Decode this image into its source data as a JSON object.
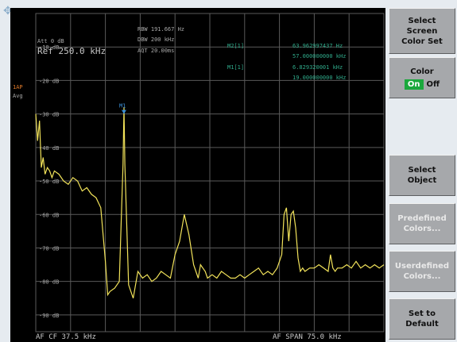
{
  "header": {
    "att": "Att  0 dB",
    "ref": "Ref  250.0 kHz",
    "rbw": "RBW 191.667 Hz",
    "dbw": "DBW 200 kHz",
    "aqt": "AQT 20.00ms",
    "m2_label": "M2[1]",
    "m2_val1": "63.962997437 Hz",
    "m2_val2": "57.000000000 kHz",
    "m1_label": "M1[1]",
    "m1_val1": "6.829320001 kHz",
    "m1_val2": "19.000000000 kHz",
    "trace_mode_1": "1AP",
    "trace_mode_2": "Avg",
    "marker_label": "M1",
    "footer_left": "AF CF  37.5 kHz",
    "footer_right": "AF SPAN  75.0 kHz"
  },
  "softkeys": {
    "select_color_set": [
      "Select",
      "Screen",
      "Color Set"
    ],
    "color_title": "Color",
    "color_on": "On",
    "color_off": "Off",
    "select_object": [
      "Select",
      "Object"
    ],
    "predefined": [
      "Predefined",
      "Colors..."
    ],
    "userdefined": [
      "Userdefined",
      "Colors..."
    ],
    "set_default": [
      "Set to",
      "Default"
    ]
  },
  "colors": {
    "trace": "#f2e35a",
    "grid": "#5a5a5a",
    "marker": "#3a8fd8",
    "header_text": "#a8a8a8",
    "marker_text": "#2faa8a",
    "softkey_bg": "#a6a8ab",
    "on_green": "#1aa83c"
  },
  "chart_data": {
    "type": "line",
    "title": "",
    "xlabel": "",
    "ylabel": "",
    "x_range_khz": [
      0,
      75
    ],
    "ylim": [
      -95,
      0
    ],
    "y_unit": "dB",
    "y_ticks": [
      -10,
      -20,
      -30,
      -40,
      -50,
      -60,
      -70,
      -80,
      -90
    ],
    "y_tick_labels": [
      "-10 dB",
      "-20 dB",
      "-30 dB",
      "-40 dB",
      "-50 dB",
      "-60 dB",
      "-70 dB",
      "-80 dB",
      "-90 dB"
    ],
    "grid": true,
    "markers": [
      {
        "name": "M1",
        "x": 19.0,
        "y": -30
      }
    ],
    "series": [
      {
        "x": [
          0,
          0.4,
          0.8,
          1.2,
          1.6,
          2,
          2.5,
          3,
          3.5,
          4,
          5,
          6,
          7,
          8,
          9,
          10,
          11,
          12,
          13,
          14,
          15,
          15.5,
          16,
          17,
          18,
          18.8,
          19,
          19.2,
          20,
          21,
          22,
          23,
          24,
          25,
          26,
          27,
          28,
          29,
          30,
          31,
          32,
          33,
          34,
          35,
          35.5,
          36,
          36.5,
          37,
          38,
          39,
          40,
          41,
          42,
          43,
          44,
          45,
          46,
          47,
          48,
          49,
          50,
          51,
          52,
          53,
          53.5,
          54,
          54.5,
          55,
          55.5,
          56,
          56.5,
          57,
          57.5,
          58,
          59,
          60,
          61,
          62,
          63,
          63.5,
          64,
          64.5,
          65,
          66,
          67,
          68,
          69,
          70,
          71,
          72,
          73,
          74,
          75
        ],
        "y": [
          -30,
          -38,
          -32,
          -46,
          -43,
          -48,
          -46,
          -47,
          -49,
          -47,
          -48,
          -50,
          -51,
          -49,
          -50,
          -53,
          -52,
          -54,
          -55,
          -58,
          -74,
          -84,
          -83,
          -82,
          -80,
          -45,
          -28,
          -45,
          -81,
          -85,
          -77,
          -79,
          -78,
          -80,
          -79,
          -77,
          -78,
          -79,
          -72,
          -68,
          -60,
          -66,
          -75,
          -79,
          -75,
          -76,
          -77,
          -79,
          -78,
          -79,
          -77,
          -78,
          -79,
          -79,
          -78,
          -79,
          -78,
          -77,
          -76,
          -78,
          -77,
          -78,
          -76,
          -72,
          -60,
          -58,
          -68,
          -60,
          -59,
          -64,
          -73,
          -77,
          -76,
          -77,
          -76,
          -76,
          -75,
          -76,
          -77,
          -72,
          -76,
          -77,
          -76,
          -76,
          -75,
          -76,
          -74,
          -76,
          -75,
          -76,
          -75,
          -76,
          -75
        ]
      }
    ]
  }
}
